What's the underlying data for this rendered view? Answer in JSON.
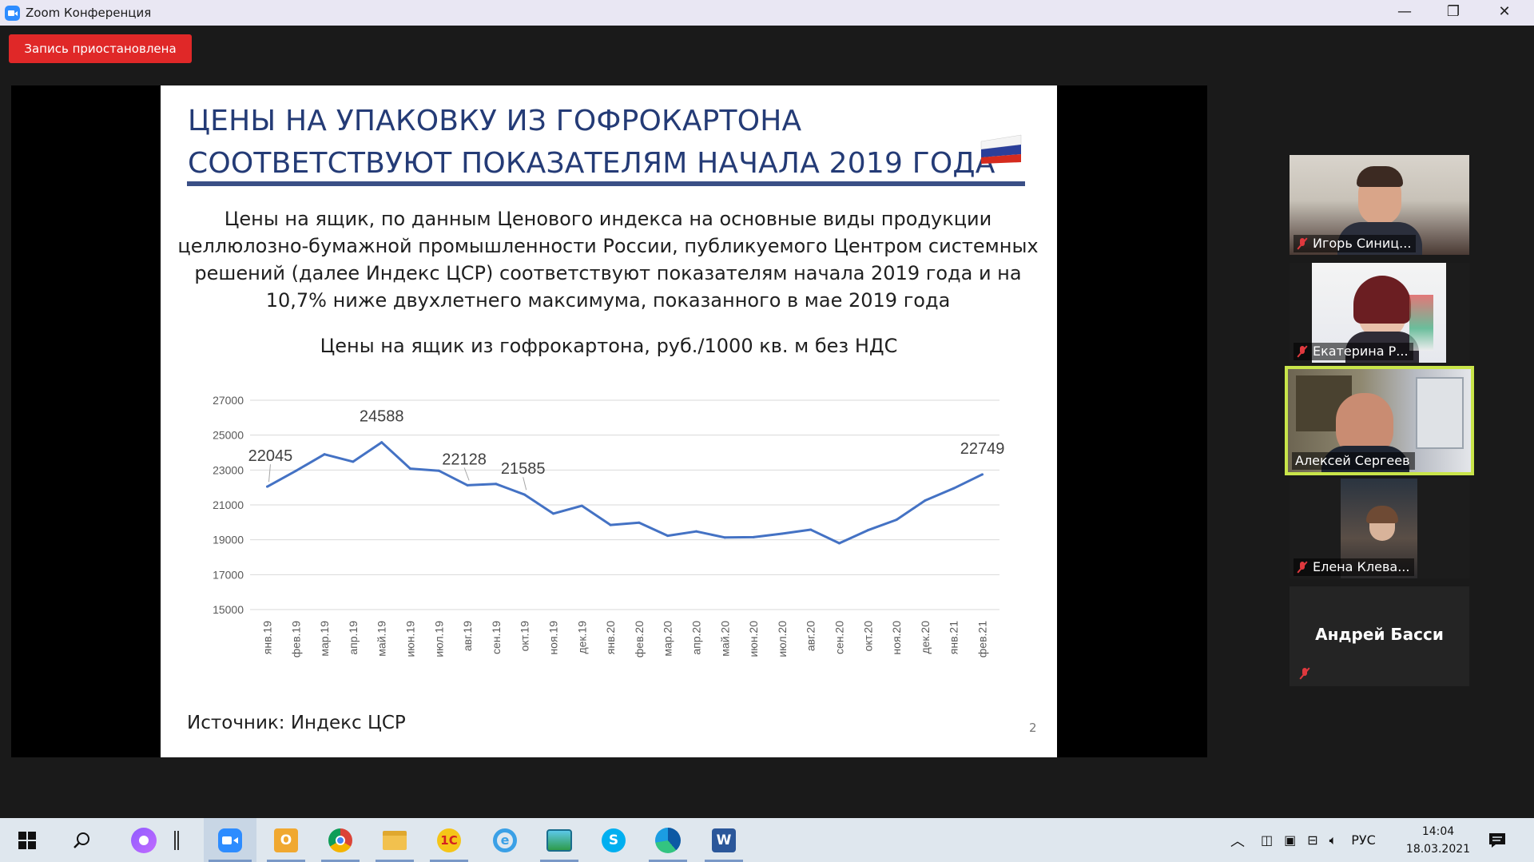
{
  "window": {
    "title": "Zoom Конференция",
    "minimize": "—",
    "maximize": "❐",
    "close": "✕"
  },
  "recording": {
    "label": "Запись приостановлена"
  },
  "slide": {
    "title_line1": "ЦЕНЫ НА УПАКОВКУ ИЗ ГОФРОКАРТОНА",
    "title_line2": "СООТВЕТСТВУЮТ ПОКАЗАТЕЛЯМ НАЧАЛА 2019 ГОДА",
    "body": "Цены на ящик, по данным Ценового индекса на основные виды продукции целлюлозно-бумажной промышленности России, публикуемого Центром системных решений (далее Индекс ЦСР) соответствуют показателям начала 2019 года и на 10,7% ниже двухлетнего максимума, показанного в мае 2019 года",
    "chart_title": "Цены на ящик из гофрокартона, руб./1000 кв. м без НДС",
    "source": "Источник: Индекс ЦСР",
    "page_number": "2"
  },
  "chart_data": {
    "type": "line",
    "title": "Цены на ящик из гофрокартона, руб./1000 кв. м без НДС",
    "categories": [
      "янв.19",
      "фев.19",
      "мар.19",
      "апр.19",
      "май.19",
      "июн.19",
      "июл.19",
      "авг.19",
      "сен.19",
      "окт.19",
      "ноя.19",
      "дек.19",
      "янв.20",
      "фев.20",
      "мар.20",
      "апр.20",
      "май.20",
      "июн.20",
      "июл.20",
      "авг.20",
      "сен.20",
      "окт.20",
      "ноя.20",
      "дек.20",
      "янв.21",
      "фев.21"
    ],
    "values": [
      22045,
      22950,
      23900,
      23480,
      24588,
      23080,
      22960,
      22128,
      22200,
      21585,
      20500,
      20950,
      19850,
      19980,
      19230,
      19480,
      19130,
      19150,
      19350,
      19580,
      18800,
      19550,
      20150,
      21250,
      21950,
      22749
    ],
    "yticks": [
      15000,
      17000,
      19000,
      21000,
      23000,
      25000,
      27000
    ],
    "ylim": [
      15000,
      27000
    ],
    "data_labels": [
      {
        "index": 0,
        "text": "22045"
      },
      {
        "index": 4,
        "text": "24588"
      },
      {
        "index": 7,
        "text": "22128"
      },
      {
        "index": 9,
        "text": "21585"
      },
      {
        "index": 25,
        "text": "22749"
      }
    ],
    "line_color": "#4472c4",
    "grid": true
  },
  "participants": [
    {
      "name": "Игорь Синиц...",
      "muted": true,
      "active": false
    },
    {
      "name": "Екатерина Р...",
      "muted": true,
      "active": false
    },
    {
      "name": "Алексей Сергеев",
      "muted": false,
      "active": true
    },
    {
      "name": "Елена Клева...",
      "muted": true,
      "active": false
    },
    {
      "name": "Андрей Басси",
      "muted": true,
      "active": false,
      "video": false
    }
  ],
  "taskbar": {
    "apps": [
      {
        "icon": "windows-start-icon"
      },
      {
        "icon": "search-icon"
      },
      {
        "icon": "alice-assistant-icon"
      },
      {
        "icon": "separator-icon"
      },
      {
        "icon": "zoom-icon"
      },
      {
        "icon": "outlook-icon"
      },
      {
        "icon": "chrome-icon"
      },
      {
        "icon": "file-explorer-icon"
      },
      {
        "icon": "1c-icon"
      },
      {
        "icon": "internet-explorer-icon"
      },
      {
        "icon": "photo-viewer-icon"
      },
      {
        "icon": "skype-icon"
      },
      {
        "icon": "edge-icon"
      },
      {
        "icon": "word-icon"
      }
    ],
    "lang": "РУС",
    "time": "14:04",
    "date": "18.03.2021"
  }
}
